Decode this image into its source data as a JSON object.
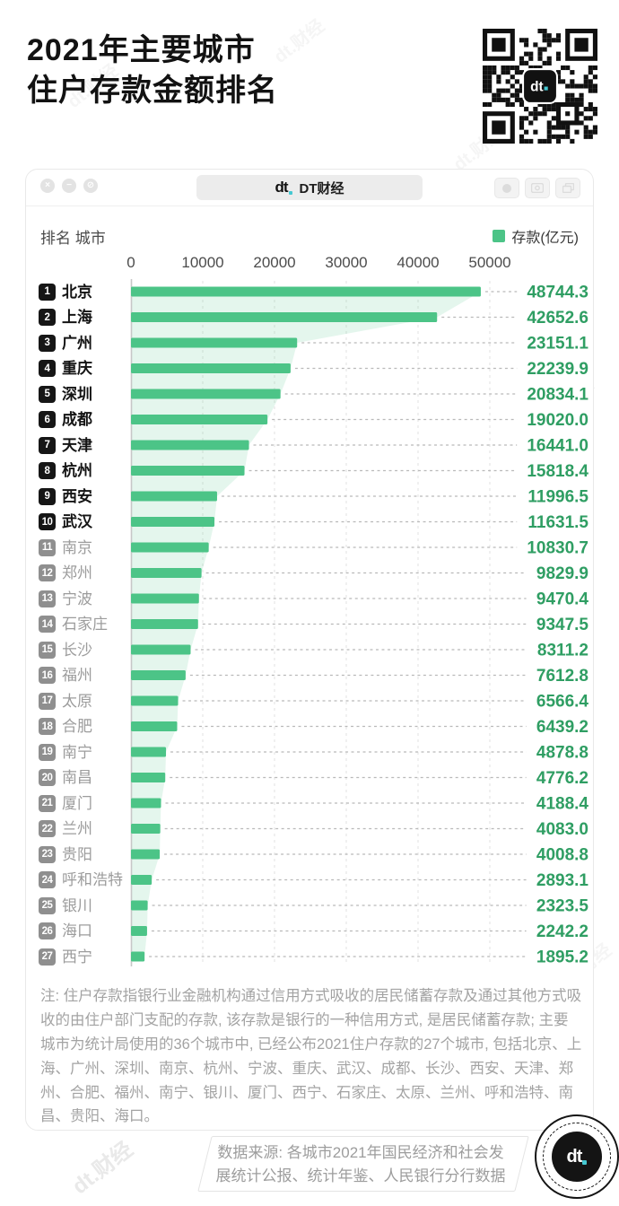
{
  "page": {
    "title_line1": "2021年主要城市",
    "title_line2": "住户存款金额排名"
  },
  "qr": {
    "center_label": "dt."
  },
  "window": {
    "tab_logo": "dt",
    "tab_title": "DT财经",
    "controls_left": [
      "close",
      "minimize",
      "block"
    ],
    "controls_right": [
      "record",
      "screenshot",
      "restore"
    ]
  },
  "chart": {
    "header_left": "排名 城市",
    "legend_label": "存款(亿元)",
    "legend_color": "#4cc487",
    "value_color": "#2f9e63",
    "axis_ticks": [
      "0",
      "10000",
      "20000",
      "30000",
      "40000",
      "50000"
    ]
  },
  "chart_data": {
    "type": "bar",
    "orientation": "horizontal",
    "title": "2021年主要城市住户存款金额排名",
    "legend": [
      "存款(亿元)"
    ],
    "xlabel": "存款(亿元)",
    "xlim": [
      0,
      50000
    ],
    "grid": "dashed-vertical",
    "bar_color": "#4cc487",
    "area_fill": "rgba(76,196,135,0.15)",
    "categories": [
      "北京",
      "上海",
      "广州",
      "重庆",
      "深圳",
      "成都",
      "天津",
      "杭州",
      "西安",
      "武汉",
      "南京",
      "郑州",
      "宁波",
      "石家庄",
      "长沙",
      "福州",
      "太原",
      "合肥",
      "南宁",
      "南昌",
      "厦门",
      "兰州",
      "贵阳",
      "呼和浩特",
      "银川",
      "海口",
      "西宁"
    ],
    "ranks": [
      1,
      2,
      3,
      4,
      5,
      6,
      7,
      8,
      9,
      10,
      11,
      12,
      13,
      14,
      15,
      16,
      17,
      18,
      19,
      20,
      21,
      22,
      23,
      24,
      25,
      26,
      27
    ],
    "values": [
      48744.3,
      42652.6,
      23151.1,
      22239.9,
      20834.1,
      19020.0,
      16441.0,
      15818.4,
      11996.5,
      11631.5,
      10830.7,
      9829.9,
      9470.4,
      9347.5,
      8311.2,
      7612.8,
      6566.4,
      6439.2,
      4878.8,
      4776.2,
      4188.4,
      4083.0,
      4008.8,
      2893.1,
      2323.5,
      2242.2,
      1895.2
    ],
    "value_labels": [
      "48744.3",
      "42652.6",
      "23151.1",
      "22239.9",
      "20834.1",
      "19020.0",
      "16441.0",
      "15818.4",
      "11996.5",
      "11631.5",
      "10830.7",
      "9829.9",
      "9470.4",
      "9347.5",
      "8311.2",
      "7612.8",
      "6566.4",
      "6439.2",
      "4878.8",
      "4776.2",
      "4188.4",
      "4083.0",
      "4008.8",
      "2893.1",
      "2323.5",
      "2242.2",
      "1895.2"
    ],
    "top_highlight_count": 10
  },
  "note": {
    "text": "注: 住户存款指银行业金融机构通过信用方式吸收的居民储蓄存款及通过其他方式吸收的由住户部门支配的存款, 该存款是银行的一种信用方式, 是居民储蓄存款; 主要城市为统计局使用的36个城市中, 已经公布2021住户存款的27个城市, 包括北京、上海、广州、深圳、南京、杭州、宁波、重庆、武汉、成都、长沙、西安、天津、郑州、合肥、福州、南宁、银川、厦门、西宁、石家庄、太原、兰州、呼和浩特、南昌、贵阳、海口。"
  },
  "footer": {
    "source_line1": "数据来源: 各城市2021年国民经济和社会发",
    "source_line2": "展统计公报、统计年鉴、人民银行分行数据",
    "logo_label": "dt."
  },
  "watermark": {
    "text": "dt.财经"
  }
}
